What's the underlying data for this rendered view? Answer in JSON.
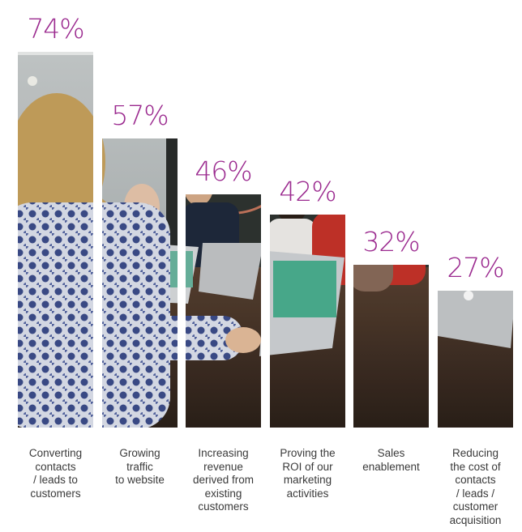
{
  "chart_data": {
    "type": "bar",
    "categories": [
      "Converting\ncontacts\n/ leads to\ncustomers",
      "Growing\ntraffic\nto website",
      "Increasing\nrevenue\nderived from\nexisting\ncustomers",
      "Proving the\nROI of our\nmarketing\nactivities",
      "Sales\nenablement",
      "Reducing\nthe cost of\ncontacts\n/ leads /\ncustomer\nacquisition"
    ],
    "values": [
      74,
      57,
      46,
      42,
      32,
      27
    ],
    "value_labels": [
      "74%",
      "57%",
      "46%",
      "42%",
      "32%",
      "27%"
    ],
    "title": "",
    "xlabel": "",
    "ylabel": "",
    "ylim": [
      0,
      100
    ],
    "grid": false,
    "bar_fill": "photo",
    "value_label_color": "#9b2a8f",
    "category_label_color": "#3a3a3a"
  }
}
